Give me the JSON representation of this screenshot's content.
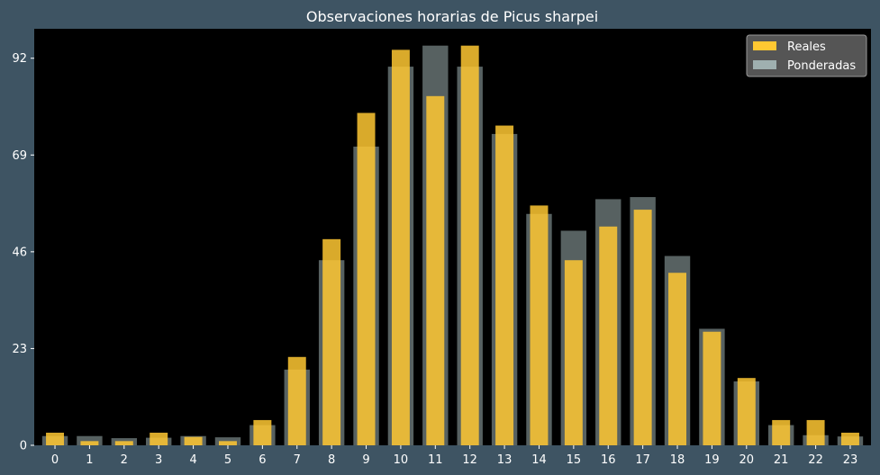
{
  "chart_data": {
    "type": "bar",
    "title": "Observaciones horarias de Picus sharpei",
    "xlabel": "",
    "ylabel": "",
    "categories": [
      "0",
      "1",
      "2",
      "3",
      "4",
      "5",
      "6",
      "7",
      "8",
      "9",
      "10",
      "11",
      "12",
      "13",
      "14",
      "15",
      "16",
      "17",
      "18",
      "19",
      "20",
      "21",
      "22",
      "23"
    ],
    "series": [
      {
        "name": "Reales",
        "color": "#ffc832",
        "values": [
          3,
          1,
          1,
          3,
          2,
          1,
          6,
          21,
          49,
          79,
          94,
          83,
          95,
          76,
          57,
          44,
          52,
          56,
          41,
          27,
          16,
          6,
          6,
          3
        ]
      },
      {
        "name": "Ponderadas",
        "color": "#9fb0b0",
        "values": [
          2.2,
          2.2,
          1.7,
          1.8,
          2.2,
          1.9,
          4.8,
          18,
          44,
          71,
          90,
          95,
          90,
          74,
          55,
          51,
          58.5,
          59,
          45,
          27.7,
          15.2,
          4.8,
          2.4,
          2.1
        ]
      }
    ],
    "ylim": [
      0,
      99
    ],
    "yticks": [
      0,
      23,
      46,
      69,
      92
    ],
    "grid": false,
    "legend_position": "top-right",
    "plot_background": "#000000",
    "figure_background": "#3e5463"
  }
}
